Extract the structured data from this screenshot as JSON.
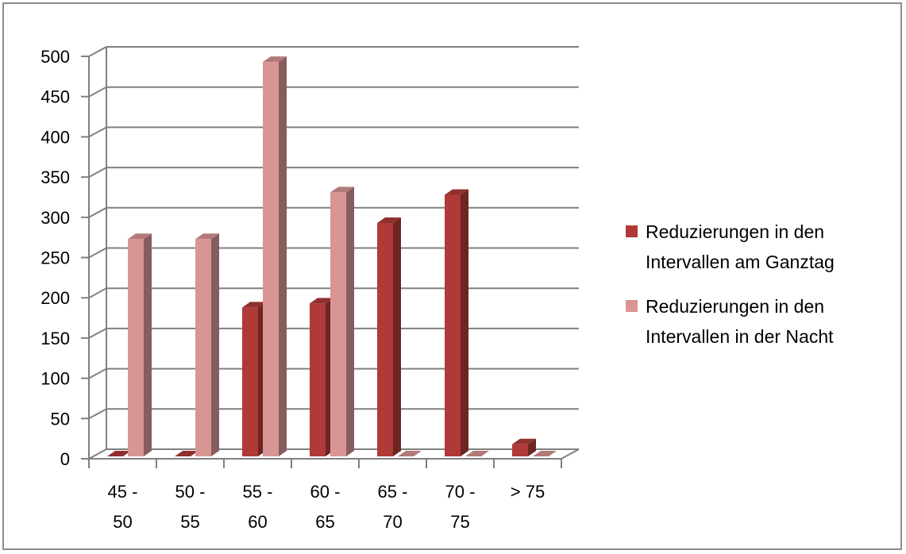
{
  "chart_data": {
    "type": "bar",
    "categories": [
      [
        "45 -",
        "50"
      ],
      [
        "50 -",
        "55"
      ],
      [
        "55 -",
        "60"
      ],
      [
        "60 -",
        "65"
      ],
      [
        "65 -",
        "70"
      ],
      [
        "70 -",
        "75"
      ],
      [
        "> 75"
      ]
    ],
    "series": [
      {
        "name": [
          "Reduzierungen in den",
          "Intervallen am Ganztag"
        ],
        "color": "#b03a38",
        "values": [
          0,
          0,
          185,
          190,
          290,
          325,
          15
        ]
      },
      {
        "name": [
          "Reduzierungen in den",
          "Intervallen in der Nacht"
        ],
        "color": "#d99594",
        "values": [
          270,
          270,
          490,
          328,
          0,
          0,
          0
        ]
      }
    ],
    "ylim": [
      0,
      500
    ],
    "yticks": [
      "0",
      "50",
      "100",
      "150",
      "200",
      "250",
      "300",
      "350",
      "400",
      "450",
      "500"
    ],
    "grid": true,
    "legend": "right",
    "style": "3d-clustered-column"
  }
}
